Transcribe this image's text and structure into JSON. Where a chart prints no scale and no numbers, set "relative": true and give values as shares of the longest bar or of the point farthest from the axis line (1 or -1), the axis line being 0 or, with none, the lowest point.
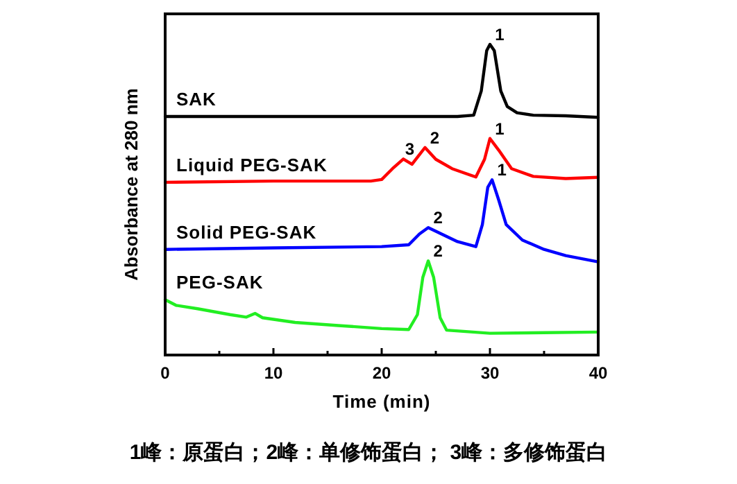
{
  "chart_data": {
    "type": "line",
    "relative": true,
    "xlabel": "Time (min)",
    "ylabel": "Absorbance at 280 nm",
    "xlim": [
      0,
      40
    ],
    "xticks": [
      0,
      {
        "value": 5,
        "label": null
      },
      10,
      {
        "value": 15,
        "label": null
      },
      20,
      {
        "value": 25,
        "label": null
      },
      30,
      {
        "value": 35,
        "label": null
      },
      40
    ],
    "series": [
      {
        "name": "SAK",
        "color": "#000000",
        "x": [
          0,
          20,
          27,
          28.5,
          29.2,
          29.7,
          30,
          30.4,
          31,
          31.6,
          32.5,
          34,
          37,
          40
        ],
        "values": [
          0.768,
          0.768,
          0.768,
          0.772,
          0.85,
          0.98,
          1.0,
          0.98,
          0.85,
          0.8,
          0.78,
          0.772,
          0.77,
          0.765
        ]
      },
      {
        "name": "Liquid PEG-SAK",
        "color": "#ff0000",
        "x": [
          0,
          10,
          19,
          20,
          21,
          22,
          22.8,
          24,
          25,
          26.5,
          28.7,
          29.5,
          30,
          30.8,
          32,
          34,
          37,
          40
        ],
        "values": [
          0.556,
          0.56,
          0.56,
          0.565,
          0.6,
          0.631,
          0.614,
          0.668,
          0.63,
          0.6,
          0.573,
          0.63,
          0.697,
          0.66,
          0.6,
          0.575,
          0.568,
          0.572
        ]
      },
      {
        "name": "Solid PEG-SAK",
        "color": "#0000ff",
        "x": [
          0,
          10,
          20,
          22.5,
          23.5,
          24.3,
          25.5,
          27,
          28.7,
          29.3,
          29.8,
          30.2,
          30.8,
          31.5,
          33,
          35,
          37,
          40
        ],
        "values": [
          0.34,
          0.345,
          0.349,
          0.355,
          0.39,
          0.41,
          0.39,
          0.365,
          0.349,
          0.42,
          0.54,
          0.564,
          0.5,
          0.42,
          0.37,
          0.34,
          0.32,
          0.3
        ]
      },
      {
        "name": "PEG-SAK",
        "color": "#22ee22",
        "x": [
          0,
          1,
          3,
          6,
          7.5,
          8.3,
          9,
          12,
          16,
          20,
          22.5,
          23.3,
          23.8,
          24.3,
          24.8,
          25.4,
          26,
          30,
          35,
          40
        ],
        "values": [
          0.178,
          0.16,
          0.149,
          0.13,
          0.122,
          0.134,
          0.12,
          0.105,
          0.095,
          0.085,
          0.082,
          0.13,
          0.25,
          0.303,
          0.25,
          0.12,
          0.08,
          0.07,
          0.072,
          0.074
        ]
      }
    ],
    "annotations": [
      {
        "text": "1",
        "x": 30,
        "y": 1.0
      },
      {
        "text": "3",
        "x": 21.7,
        "y": 0.631
      },
      {
        "text": "2",
        "x": 24,
        "y": 0.668
      },
      {
        "text": "1",
        "x": 30,
        "y": 0.697
      },
      {
        "text": "2",
        "x": 24.3,
        "y": 0.41
      },
      {
        "text": "1",
        "x": 30.2,
        "y": 0.564
      },
      {
        "text": "2",
        "x": 24.3,
        "y": 0.303
      },
      "1峰：原蛋白；2峰：单修饰蛋白； 3峰：多修饰蛋白"
    ]
  }
}
